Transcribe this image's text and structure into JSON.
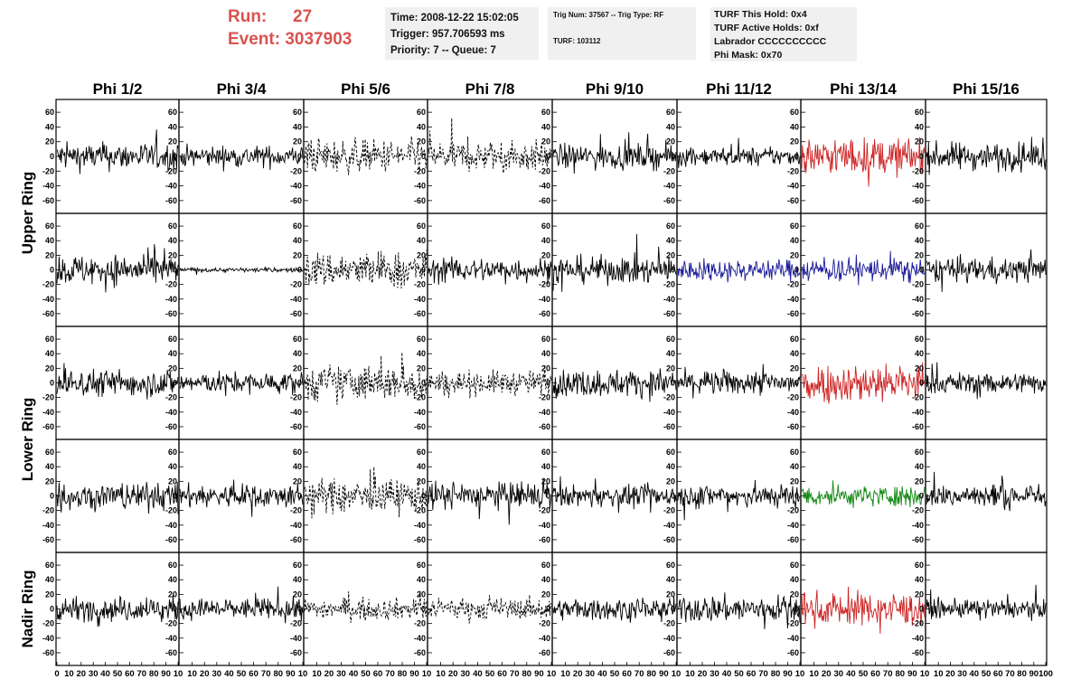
{
  "header": {
    "run_label": "Run:",
    "run_value": "27",
    "event_label": "Event:",
    "event_value": "3037903",
    "time": "Time: 2008-12-22 15:02:05",
    "trigger": "Trigger: 957.706593 ms",
    "priority": "Priority: 7 -- Queue: 7",
    "trig_num": "Trig Num: 37567 -- Trig Type: RF",
    "turf": "TURF: 103112",
    "turf_this_hold": "TURF This Hold: 0x4",
    "turf_active_holds": "TURF Active Holds: 0xf",
    "labrador": "Labrador CCCCCCCCCC",
    "phi_mask": "Phi Mask: 0x70"
  },
  "chart_data": {
    "type": "line",
    "columns": [
      "Phi 1/2",
      "Phi 3/4",
      "Phi 5/6",
      "Phi 7/8",
      "Phi 9/10",
      "Phi 11/12",
      "Phi 13/14",
      "Phi 15/16"
    ],
    "row_labels": [
      {
        "label": "Upper Ring",
        "rows": [
          0,
          1
        ]
      },
      {
        "label": "Lower Ring",
        "rows": [
          2,
          3
        ]
      },
      {
        "label": "Nadir Ring",
        "rows": [
          4
        ]
      }
    ],
    "xlim": [
      0,
      100
    ],
    "ylim": [
      -70,
      70
    ],
    "yticks": [
      -60,
      -40,
      -20,
      0,
      20,
      40,
      60
    ],
    "xticks": [
      0,
      10,
      20,
      30,
      40,
      50,
      60,
      70,
      80,
      90,
      100
    ],
    "last_xtick_label": "10",
    "final_xtick_label": "100",
    "colors": {
      "default": "#000000",
      "red": "#cc2222",
      "blue": "#1a1a99",
      "green": "#118811"
    },
    "panels": [
      [
        {
          "amp": 18,
          "color": "default",
          "dashed": false
        },
        {
          "amp": 14,
          "color": "default",
          "dashed": false
        },
        {
          "amp": 22,
          "color": "default",
          "dashed": true
        },
        {
          "amp": 20,
          "color": "default",
          "dashed": true
        },
        {
          "amp": 16,
          "color": "default",
          "dashed": false
        },
        {
          "amp": 12,
          "color": "default",
          "dashed": false
        },
        {
          "amp": 24,
          "color": "red",
          "dashed": false
        },
        {
          "amp": 18,
          "color": "default",
          "dashed": false
        }
      ],
      [
        {
          "amp": 20,
          "color": "default",
          "dashed": false
        },
        {
          "amp": 3,
          "color": "default",
          "dashed": false
        },
        {
          "amp": 24,
          "color": "default",
          "dashed": true
        },
        {
          "amp": 16,
          "color": "default",
          "dashed": false
        },
        {
          "amp": 18,
          "color": "default",
          "dashed": false
        },
        {
          "amp": 14,
          "color": "blue",
          "dashed": false
        },
        {
          "amp": 16,
          "color": "blue",
          "dashed": false
        },
        {
          "amp": 16,
          "color": "default",
          "dashed": false
        }
      ],
      [
        {
          "amp": 18,
          "color": "default",
          "dashed": false
        },
        {
          "amp": 14,
          "color": "default",
          "dashed": false
        },
        {
          "amp": 24,
          "color": "default",
          "dashed": true
        },
        {
          "amp": 16,
          "color": "default",
          "dashed": true
        },
        {
          "amp": 18,
          "color": "default",
          "dashed": false
        },
        {
          "amp": 16,
          "color": "default",
          "dashed": false
        },
        {
          "amp": 26,
          "color": "red",
          "dashed": false
        },
        {
          "amp": 14,
          "color": "default",
          "dashed": false
        }
      ],
      [
        {
          "amp": 18,
          "color": "default",
          "dashed": false
        },
        {
          "amp": 16,
          "color": "default",
          "dashed": false
        },
        {
          "amp": 22,
          "color": "default",
          "dashed": true
        },
        {
          "amp": 18,
          "color": "default",
          "dashed": false
        },
        {
          "amp": 14,
          "color": "default",
          "dashed": false
        },
        {
          "amp": 16,
          "color": "default",
          "dashed": false
        },
        {
          "amp": 14,
          "color": "green",
          "dashed": false
        },
        {
          "amp": 16,
          "color": "default",
          "dashed": false
        }
      ],
      [
        {
          "amp": 16,
          "color": "default",
          "dashed": false
        },
        {
          "amp": 14,
          "color": "default",
          "dashed": false
        },
        {
          "amp": 14,
          "color": "default",
          "dashed": true
        },
        {
          "amp": 14,
          "color": "default",
          "dashed": true
        },
        {
          "amp": 14,
          "color": "default",
          "dashed": false
        },
        {
          "amp": 18,
          "color": "default",
          "dashed": false
        },
        {
          "amp": 22,
          "color": "red",
          "dashed": false
        },
        {
          "amp": 12,
          "color": "default",
          "dashed": false
        }
      ]
    ]
  }
}
